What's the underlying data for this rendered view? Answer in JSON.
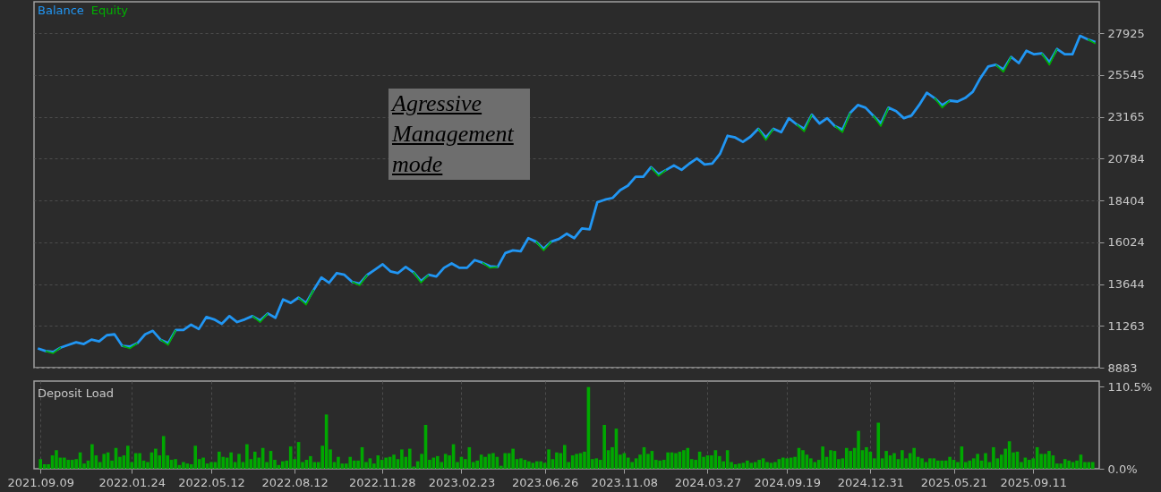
{
  "chart_data": [
    {
      "type": "line",
      "annotations": [
        "Agressive Management mode"
      ],
      "legend": "top left",
      "grid": "y",
      "tick_labels": "y",
      "categories": [
        null,
        null,
        null,
        null,
        null,
        null,
        null,
        null,
        null,
        null,
        null,
        null,
        null,
        null,
        null,
        null,
        null,
        null,
        null,
        null,
        null,
        null,
        null,
        null,
        null,
        null,
        null,
        null,
        null,
        null,
        null,
        null,
        null,
        null,
        null,
        null,
        null,
        null,
        null,
        null,
        null,
        null,
        null,
        null,
        null,
        null,
        null,
        null,
        null,
        null,
        null,
        null,
        null,
        null,
        null,
        null,
        null,
        null,
        null,
        null,
        null,
        null,
        null,
        null,
        null,
        null,
        null,
        null,
        null,
        null,
        null,
        null,
        null,
        null,
        null,
        null,
        null,
        null,
        null,
        null,
        null,
        null,
        null,
        null,
        null,
        null,
        null,
        null,
        null,
        null,
        null,
        null,
        null,
        null,
        null,
        null,
        null,
        null,
        null,
        null,
        null,
        null,
        null,
        null,
        null,
        null,
        null,
        null,
        null,
        null,
        null,
        null,
        null,
        null,
        null,
        null,
        null,
        null,
        null,
        null,
        null,
        null,
        null,
        null,
        null,
        null,
        null,
        null,
        null,
        null,
        null,
        null,
        null,
        null,
        null,
        null,
        null,
        null,
        null
      ],
      "series": [
        {
          "name": "Balance",
          "color": "#2196f3",
          "values": [
            9980,
            9830,
            9780,
            10030,
            10180,
            10330,
            10230,
            10480,
            10380,
            10730,
            10780,
            10130,
            10080,
            10280,
            10780,
            10980,
            10480,
            10280,
            11030,
            11030,
            11330,
            11080,
            11770,
            11630,
            11380,
            11820,
            11480,
            11630,
            11820,
            11570,
            11970,
            11720,
            12770,
            12570,
            12870,
            12570,
            13320,
            14020,
            13720,
            14270,
            14170,
            13770,
            13670,
            14170,
            14470,
            14770,
            14370,
            14270,
            14620,
            14320,
            13820,
            14170,
            14070,
            14570,
            14820,
            14570,
            14570,
            15010,
            14860,
            14660,
            14620,
            15410,
            15560,
            15510,
            16260,
            16060,
            15660,
            16060,
            16210,
            16510,
            16260,
            16810,
            16760,
            18300,
            18450,
            18550,
            19000,
            19250,
            19750,
            19750,
            20300,
            19900,
            20150,
            20400,
            20150,
            20500,
            20800,
            20450,
            20500,
            21050,
            22090,
            21990,
            21740,
            22040,
            22490,
            21990,
            22490,
            22290,
            23090,
            22740,
            22490,
            23290,
            22790,
            23090,
            22640,
            22440,
            23390,
            23840,
            23690,
            23240,
            22790,
            23690,
            23490,
            23090,
            23240,
            23840,
            24540,
            24240,
            23840,
            24090,
            24040,
            24240,
            24590,
            25380,
            26030,
            26130,
            25880,
            26580,
            26230,
            26930,
            26730,
            26780,
            26280,
            27030,
            26730,
            26730,
            27780,
            27580,
            27430
          ]
        },
        {
          "name": "Equity",
          "color": "#00b000",
          "values": [
            null,
            9830,
            9700,
            10030,
            null,
            null,
            null,
            null,
            null,
            null,
            null,
            10130,
            9980,
            10280,
            null,
            null,
            10480,
            10180,
            11030,
            null,
            null,
            null,
            null,
            null,
            null,
            null,
            null,
            null,
            11820,
            11470,
            11970,
            null,
            null,
            null,
            12870,
            12470,
            13320,
            null,
            null,
            null,
            null,
            13770,
            13570,
            14170,
            null,
            null,
            null,
            null,
            null,
            14320,
            13720,
            14170,
            null,
            null,
            null,
            null,
            null,
            null,
            14860,
            14560,
            14620,
            null,
            null,
            null,
            null,
            16060,
            15560,
            16060,
            null,
            null,
            null,
            null,
            null,
            null,
            null,
            null,
            null,
            null,
            null,
            null,
            20300,
            19800,
            20150,
            null,
            null,
            null,
            null,
            null,
            null,
            null,
            null,
            null,
            null,
            null,
            22490,
            21840,
            22490,
            null,
            null,
            22740,
            22340,
            23290,
            null,
            null,
            22640,
            22290,
            23390,
            null,
            null,
            23240,
            22640,
            23690,
            null,
            null,
            null,
            null,
            null,
            24240,
            23690,
            24090,
            null,
            null,
            null,
            null,
            null,
            26130,
            25730,
            26580,
            null,
            null,
            null,
            26780,
            26130,
            27030,
            null,
            null,
            null,
            27580,
            27330
          ]
        }
      ],
      "ylim": [
        8883,
        29720
      ],
      "yticks": [
        8883,
        11263,
        13644,
        16024,
        18404,
        20784,
        23165,
        25545,
        27925
      ]
    },
    {
      "type": "bar",
      "title": "Deposit Load",
      "grid": "x",
      "color": "#00a800",
      "categories": [
        "2021.09.09",
        null,
        null,
        null,
        null,
        null,
        null,
        null,
        null,
        null,
        null,
        null,
        null,
        null,
        null,
        null,
        null,
        null,
        null,
        null,
        null,
        null,
        null,
        "2022.01.24",
        null,
        null,
        null,
        null,
        null,
        null,
        null,
        null,
        null,
        null,
        null,
        null,
        null,
        null,
        null,
        null,
        null,
        null,
        null,
        "2022.05.12",
        null,
        null,
        null,
        null,
        null,
        null,
        null,
        null,
        null,
        null,
        null,
        null,
        null,
        null,
        null,
        null,
        null,
        null,
        null,
        null,
        "2022.08.12",
        null,
        null,
        null,
        null,
        null,
        null,
        null,
        null,
        null,
        null,
        null,
        null,
        null,
        null,
        null,
        null,
        null,
        null,
        null,
        null,
        null,
        "2022.11.28",
        null,
        null,
        null,
        null,
        null,
        null,
        null,
        null,
        null,
        null,
        null,
        null,
        null,
        null,
        null,
        null,
        null,
        null,
        null,
        "2023.02.23",
        null,
        null,
        null,
        null,
        null,
        null,
        null,
        null,
        null,
        null,
        null,
        null,
        null,
        null,
        null,
        null,
        null,
        null,
        null,
        null,
        "2023.06.26",
        null,
        null,
        null,
        null,
        null,
        null,
        null,
        null,
        null,
        null,
        null,
        null,
        null,
        null,
        null,
        null,
        null,
        null,
        null,
        "2023.11.08",
        null,
        null,
        null,
        null,
        null,
        null,
        null,
        null,
        null,
        null,
        null,
        null,
        null,
        null,
        null,
        null,
        null,
        null,
        null,
        null,
        "2024.03.27",
        null,
        null,
        null,
        null,
        null,
        null,
        null,
        null,
        null,
        null,
        null,
        null,
        null,
        null,
        null,
        null,
        null,
        null,
        null,
        "2024.09.19",
        null,
        null,
        null,
        null,
        null,
        null,
        null,
        null,
        null,
        null,
        null,
        null,
        null,
        null,
        null,
        null,
        null,
        null,
        null,
        null,
        "2024.12.31",
        null,
        null,
        null,
        null,
        null,
        null,
        null,
        null,
        null,
        null,
        null,
        null,
        null,
        null,
        null,
        null,
        null,
        null,
        null,
        null,
        "2025.05.21",
        null,
        null,
        null,
        null,
        null,
        null,
        null,
        null,
        null,
        null,
        null,
        null,
        null,
        null,
        null,
        null,
        null,
        null,
        null,
        "2025.09.11",
        null,
        null,
        null,
        null,
        null,
        null,
        null,
        null,
        null,
        null,
        null,
        null,
        null,
        null,
        null
      ],
      "values": [
        13,
        6,
        6,
        18,
        25,
        15,
        15,
        12,
        12,
        13,
        22,
        7,
        11,
        33,
        18,
        9,
        20,
        22,
        11,
        28,
        16,
        18,
        31,
        9,
        21,
        21,
        11,
        9,
        22,
        27,
        18,
        44,
        18,
        12,
        13,
        5,
        9,
        7,
        6,
        31,
        13,
        15,
        7,
        9,
        9,
        23,
        16,
        15,
        22,
        9,
        20,
        9,
        33,
        13,
        23,
        15,
        28,
        9,
        24,
        12,
        5,
        10,
        11,
        30,
        13,
        36,
        9,
        12,
        17,
        9,
        9,
        31,
        73,
        26,
        9,
        16,
        7,
        7,
        16,
        11,
        11,
        29,
        9,
        14,
        7,
        18,
        12,
        15,
        16,
        19,
        13,
        26,
        16,
        27,
        3,
        10,
        20,
        59,
        12,
        15,
        17,
        9,
        20,
        18,
        33,
        9,
        16,
        13,
        29,
        9,
        11,
        19,
        16,
        20,
        21,
        16,
        4,
        21,
        21,
        27,
        13,
        14,
        12,
        10,
        8,
        10,
        10,
        8,
        26,
        13,
        22,
        21,
        32,
        9,
        18,
        20,
        21,
        23,
        110,
        13,
        14,
        12,
        59,
        25,
        29,
        54,
        19,
        21,
        15,
        9,
        14,
        19,
        29,
        20,
        24,
        12,
        11,
        12,
        22,
        22,
        21,
        23,
        25,
        28,
        13,
        12,
        23,
        16,
        18,
        18,
        25,
        17,
        10,
        25,
        9,
        6,
        7,
        8,
        11,
        8,
        9,
        12,
        14,
        9,
        8,
        9,
        13,
        15,
        14,
        15,
        16,
        28,
        25,
        19,
        14,
        9,
        12,
        30,
        16,
        25,
        24,
        13,
        14,
        28,
        24,
        28,
        51,
        25,
        29,
        23,
        14,
        62,
        14,
        24,
        18,
        21,
        13,
        25,
        14,
        21,
        28,
        16,
        14,
        9,
        14,
        14,
        11,
        11,
        11,
        16,
        12,
        9,
        30,
        9,
        11,
        14,
        20,
        11,
        21,
        9,
        29,
        14,
        19,
        27,
        37,
        22,
        23,
        9,
        15,
        12,
        14,
        29,
        20,
        20,
        24,
        18,
        7,
        7,
        13,
        11,
        9,
        11,
        19,
        9,
        9,
        9
      ],
      "ylim": [
        0,
        118
      ],
      "yticks": [
        {
          "value": 0,
          "label": "0.0%"
        },
        {
          "value": 110.5,
          "label": "110.5%"
        }
      ]
    }
  ]
}
